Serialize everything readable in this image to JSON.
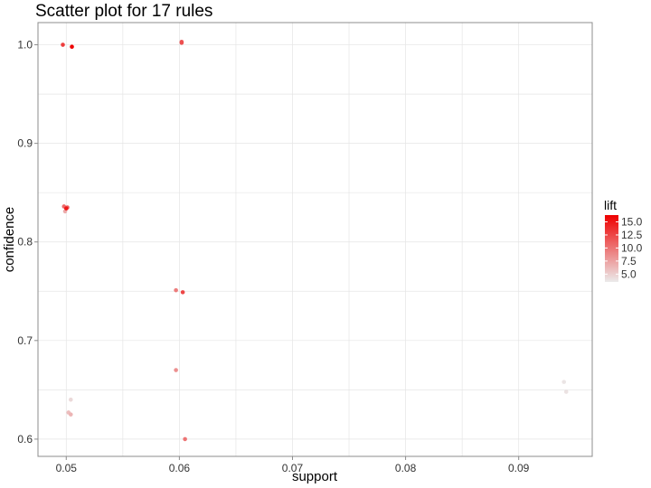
{
  "chart_data": {
    "type": "scatter",
    "title": "Scatter plot for 17 rules",
    "xlabel": "support",
    "ylabel": "confidence",
    "xlim": [
      0.0475,
      0.0965
    ],
    "ylim": [
      0.5825,
      1.0225
    ],
    "x_ticks": [
      0.05,
      0.06,
      0.07,
      0.08,
      0.09
    ],
    "x_tick_labels": [
      "0.05",
      "0.06",
      "0.07",
      "0.08",
      "0.09"
    ],
    "y_ticks": [
      0.6,
      0.7,
      0.8,
      0.9,
      1.0
    ],
    "y_tick_labels": [
      "0.6",
      "0.7",
      "0.8",
      "0.9",
      "1.0"
    ],
    "grid": true,
    "color_scale": {
      "name": "lift",
      "range": [
        3.5,
        16.3
      ],
      "low_color": "#ebebeb",
      "high_color": "#ee0000",
      "ticks": [
        5.0,
        7.5,
        10.0,
        12.5,
        15.0
      ],
      "tick_labels": [
        "5.0",
        "7.5",
        "10.0",
        "12.5",
        "15.0"
      ],
      "placement": "right"
    },
    "points": [
      {
        "support": 0.0497,
        "confidence": 1.0,
        "lift": 13.0
      },
      {
        "support": 0.0505,
        "confidence": 0.998,
        "lift": 16.3
      },
      {
        "support": 0.0602,
        "confidence": 1.002,
        "lift": 12.0
      },
      {
        "support": 0.0602,
        "confidence": 1.003,
        "lift": 11.5
      },
      {
        "support": 0.0498,
        "confidence": 0.836,
        "lift": 10.5
      },
      {
        "support": 0.0501,
        "confidence": 0.835,
        "lift": 11.0
      },
      {
        "support": 0.05,
        "confidence": 0.834,
        "lift": 15.0
      },
      {
        "support": 0.0499,
        "confidence": 0.831,
        "lift": 7.0
      },
      {
        "support": 0.0597,
        "confidence": 0.751,
        "lift": 9.5
      },
      {
        "support": 0.0603,
        "confidence": 0.749,
        "lift": 12.5
      },
      {
        "support": 0.0597,
        "confidence": 0.67,
        "lift": 8.5
      },
      {
        "support": 0.0504,
        "confidence": 0.64,
        "lift": 4.5
      },
      {
        "support": 0.0502,
        "confidence": 0.627,
        "lift": 6.0
      },
      {
        "support": 0.0504,
        "confidence": 0.625,
        "lift": 6.5
      },
      {
        "support": 0.0605,
        "confidence": 0.6,
        "lift": 10.0
      },
      {
        "support": 0.094,
        "confidence": 0.658,
        "lift": 3.8
      },
      {
        "support": 0.0942,
        "confidence": 0.648,
        "lift": 4.0
      }
    ]
  }
}
